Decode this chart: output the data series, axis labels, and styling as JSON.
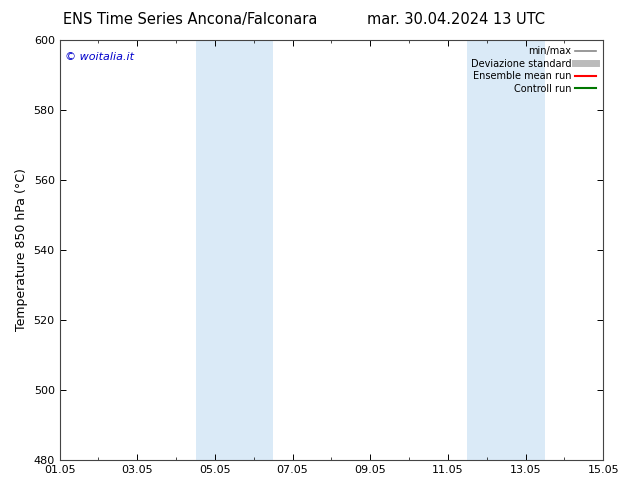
{
  "title_left": "ENS Time Series Ancona/Falconara",
  "title_right": "mar. 30.04.2024 13 UTC",
  "ylabel": "Temperature 850 hPa (°C)",
  "watermark": "© woitalia.it",
  "watermark_color": "#0000cc",
  "ylim": [
    480,
    600
  ],
  "yticks": [
    480,
    500,
    520,
    540,
    560,
    580,
    600
  ],
  "xlabel_dates": [
    "01.05",
    "03.05",
    "05.05",
    "07.05",
    "09.05",
    "11.05",
    "13.05",
    "15.05"
  ],
  "xlim": [
    0,
    14
  ],
  "xtick_positions": [
    0,
    2,
    4,
    6,
    8,
    10,
    12,
    14
  ],
  "shaded_bands": [
    {
      "xmin": 3.5,
      "xmax": 5.5
    },
    {
      "xmin": 10.5,
      "xmax": 12.5
    }
  ],
  "shade_color": "#daeaf7",
  "background_color": "#ffffff",
  "plot_bg_color": "#ffffff",
  "legend_entries": [
    {
      "label": "min/max",
      "color": "#888888",
      "lw": 1.2
    },
    {
      "label": "Deviazione standard",
      "color": "#bbbbbb",
      "lw": 5
    },
    {
      "label": "Ensemble mean run",
      "color": "#ff0000",
      "lw": 1.5
    },
    {
      "label": "Controll run",
      "color": "#007700",
      "lw": 1.5
    }
  ],
  "title_fontsize": 10.5,
  "axis_fontsize": 9,
  "tick_fontsize": 8,
  "watermark_fontsize": 8
}
